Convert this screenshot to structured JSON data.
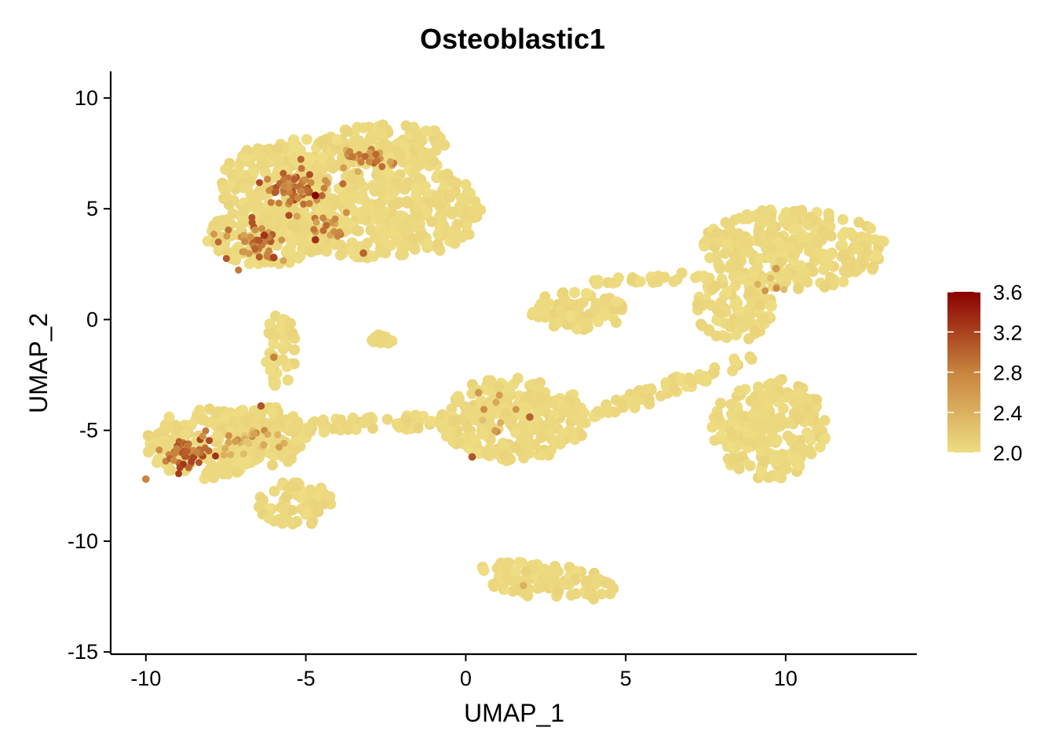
{
  "chart_data": {
    "type": "scatter",
    "title": "Osteoblastic1",
    "xlabel": "UMAP_1",
    "ylabel": "UMAP_2",
    "xlim": [
      -11.1,
      14.1
    ],
    "ylim": [
      -15.1,
      11.2
    ],
    "x_ticks": [
      -10,
      -5,
      0,
      5,
      10
    ],
    "y_ticks": [
      -15,
      -10,
      -5,
      0,
      5,
      10
    ],
    "x_tick_labels": [
      "-10",
      "-5",
      "0",
      "5",
      "10"
    ],
    "y_tick_labels": [
      "-15",
      "-10",
      "-5",
      "0",
      "5",
      "10"
    ],
    "grid": false,
    "color_scale": {
      "min": 2.0,
      "max": 3.6,
      "low_color": "#EEDD82",
      "mid_color": "#C8843E",
      "high_color": "#8B0000",
      "ticks": [
        2.0,
        2.4,
        2.8,
        3.2,
        3.6
      ],
      "tick_labels": [
        "2.0",
        "2.4",
        "2.8",
        "3.2",
        "3.6"
      ],
      "legend_position": "right"
    },
    "clusters": [
      {
        "cx": -3.6,
        "cy": 5.5,
        "rx": 4.2,
        "ry": 2.6,
        "angle": -15
      },
      {
        "cx": -6.3,
        "cy": 3.8,
        "rx": 1.8,
        "ry": 1.4,
        "angle": 0
      },
      {
        "cx": -2.5,
        "cy": 8.0,
        "rx": 2.0,
        "ry": 0.8,
        "angle": 0
      },
      {
        "cx": -8.2,
        "cy": -5.6,
        "rx": 1.8,
        "ry": 1.6,
        "angle": 0
      },
      {
        "cx": -6.4,
        "cy": -5.3,
        "rx": 1.5,
        "ry": 1.4,
        "angle": 0
      },
      {
        "cx": -5.3,
        "cy": -8.3,
        "rx": 1.2,
        "ry": 1.0,
        "angle": 0
      },
      {
        "cx": -3.0,
        "cy": -4.7,
        "rx": 3.0,
        "ry": 0.35,
        "angle": 4
      },
      {
        "cx": -5.8,
        "cy": -1.5,
        "rx": 0.5,
        "ry": 1.8,
        "angle": 0
      },
      {
        "cx": 1.5,
        "cy": -4.5,
        "rx": 2.3,
        "ry": 1.9,
        "angle": 0
      },
      {
        "cx": 2.5,
        "cy": -11.8,
        "rx": 2.2,
        "ry": 0.8,
        "angle": -10
      },
      {
        "cx": 3.5,
        "cy": 0.4,
        "rx": 1.5,
        "ry": 0.9,
        "angle": 0
      },
      {
        "cx": 10.3,
        "cy": 3.2,
        "rx": 2.9,
        "ry": 1.8,
        "angle": -5
      },
      {
        "cx": 8.4,
        "cy": 0.5,
        "rx": 1.2,
        "ry": 1.5,
        "angle": 0
      },
      {
        "cx": 6.5,
        "cy": -3.0,
        "rx": 2.9,
        "ry": 0.4,
        "angle": 28
      },
      {
        "cx": 9.5,
        "cy": -4.9,
        "rx": 1.8,
        "ry": 2.3,
        "angle": 0
      },
      {
        "cx": 5.8,
        "cy": 1.8,
        "rx": 2.0,
        "ry": 0.25,
        "angle": 5
      },
      {
        "cx": -2.6,
        "cy": -0.9,
        "rx": 0.35,
        "ry": 0.25,
        "angle": 0
      }
    ],
    "hotspots": [
      {
        "cx": -5.2,
        "cy": 6.0,
        "sx": 0.9,
        "sy": 0.8,
        "value": 2.9,
        "count": 60
      },
      {
        "cx": -3.0,
        "cy": 7.3,
        "sx": 0.8,
        "sy": 0.5,
        "value": 2.7,
        "count": 30
      },
      {
        "cx": -6.6,
        "cy": 3.5,
        "sx": 0.8,
        "sy": 0.7,
        "value": 2.8,
        "count": 45
      },
      {
        "cx": -4.4,
        "cy": 4.2,
        "sx": 0.6,
        "sy": 0.5,
        "value": 2.7,
        "count": 18
      },
      {
        "cx": -8.7,
        "cy": -6.0,
        "sx": 0.6,
        "sy": 0.6,
        "value": 3.0,
        "count": 55
      },
      {
        "cx": -6.8,
        "cy": -5.6,
        "sx": 0.9,
        "sy": 0.7,
        "value": 2.5,
        "count": 25
      },
      {
        "cx": 0.5,
        "cy": -4.3,
        "sx": 0.5,
        "sy": 1.2,
        "value": 2.5,
        "count": 8
      },
      {
        "cx": 9.5,
        "cy": 1.5,
        "sx": 0.4,
        "sy": 0.5,
        "value": 2.5,
        "count": 6
      }
    ],
    "peak_points": [
      {
        "x": -4.7,
        "y": 5.6,
        "value": 3.6
      },
      {
        "x": -6.3,
        "y": 3.8,
        "value": 3.3
      },
      {
        "x": -6.0,
        "y": 2.8,
        "value": 3.2
      },
      {
        "x": -4.7,
        "y": 3.6,
        "value": 3.3
      },
      {
        "x": -3.2,
        "y": 3.0,
        "value": 3.0
      },
      {
        "x": 0.2,
        "y": -6.2,
        "value": 3.1
      },
      {
        "x": 2.0,
        "y": -4.4,
        "value": 3.0
      },
      {
        "x": -6.4,
        "y": -3.9,
        "value": 3.1
      },
      {
        "x": -10.0,
        "y": -7.2,
        "value": 2.8
      },
      {
        "x": -6.0,
        "y": -1.7,
        "value": 2.8
      },
      {
        "x": 9.7,
        "y": 2.3,
        "value": 2.6
      },
      {
        "x": 1.8,
        "y": -12.0,
        "value": 2.4
      },
      {
        "x": 0.4,
        "y": -3.3,
        "value": 2.6
      }
    ]
  }
}
